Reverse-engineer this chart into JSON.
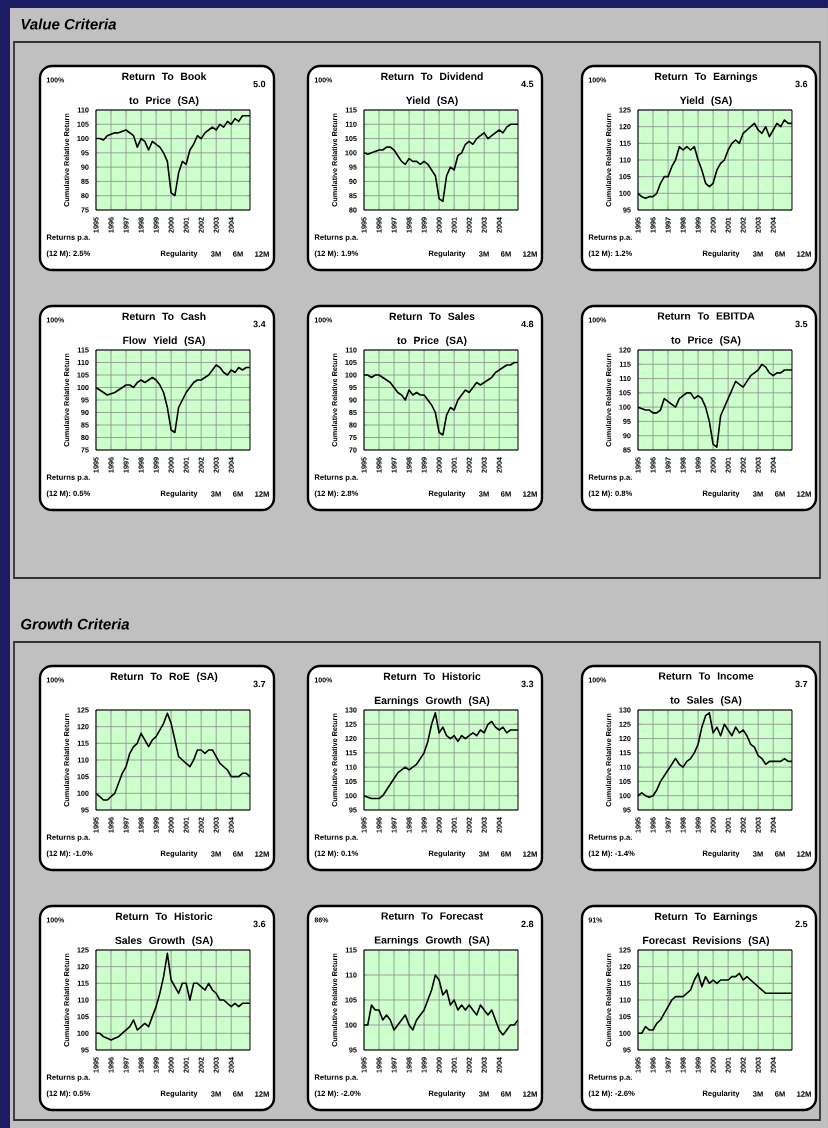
{
  "chart_data": [
    {
      "type": "other",
      "title": "Value Criteria"
    },
    {
      "type": "line",
      "title": "Return To Book to Price (SA)",
      "ylabel": "Cumulative Relative Return",
      "annotations": [
        "100%",
        "5.0",
        "Returns p.a.",
        "(12 M): 2.5%",
        "Regularity",
        "3M",
        "6M",
        "12M"
      ],
      "x": [
        1995,
        1995.25,
        1995.5,
        1995.75,
        1996,
        1996.25,
        1996.5,
        1996.75,
        1997,
        1997.25,
        1997.5,
        1997.75,
        1998,
        1998.25,
        1998.5,
        1998.75,
        1999,
        1999.25,
        1999.5,
        1999.75,
        2000,
        2000.25,
        2000.5,
        2000.75,
        2001,
        2001.25,
        2001.5,
        2001.75,
        2002,
        2002.25,
        2002.5,
        2002.75,
        2003,
        2003.25,
        2003.5,
        2003.75,
        2004,
        2004.25,
        2004.5,
        2004.75,
        2005,
        2005.25
      ],
      "xlim": [
        1995,
        2005.25
      ],
      "xticks": [
        1995,
        1996,
        1997,
        1998,
        1999,
        2000,
        2001,
        2002,
        2003,
        2004
      ],
      "ylim": [
        75,
        110
      ],
      "yticks": [
        75,
        80,
        85,
        90,
        95,
        100,
        105,
        110
      ],
      "grid": true,
      "series": [
        {
          "color": "#000000",
          "values": [
            100,
            100,
            99.5,
            101,
            101.5,
            102,
            102,
            102.5,
            103,
            102,
            101,
            97,
            100,
            99,
            96,
            99,
            98,
            97,
            95,
            92,
            81,
            80,
            88,
            92,
            91,
            96,
            98,
            101,
            100,
            102,
            103,
            104,
            103,
            105,
            104,
            106,
            105,
            107,
            106,
            108,
            108,
            108
          ]
        }
      ]
    },
    {
      "type": "line",
      "title": "Return To Dividend Yield (SA)",
      "ylabel": "Cumulative Relative Return",
      "annotations": [
        "100%",
        "4.5",
        "Returns p.a.",
        "(12 M): 1.9%",
        "Regularity",
        "3M",
        "6M",
        "12M"
      ],
      "x": [
        1995,
        1995.25,
        1995.5,
        1995.75,
        1996,
        1996.25,
        1996.5,
        1996.75,
        1997,
        1997.25,
        1997.5,
        1997.75,
        1998,
        1998.25,
        1998.5,
        1998.75,
        1999,
        1999.25,
        1999.5,
        1999.75,
        2000,
        2000.25,
        2000.5,
        2000.75,
        2001,
        2001.25,
        2001.5,
        2001.75,
        2002,
        2002.25,
        2002.5,
        2002.75,
        2003,
        2003.25,
        2003.5,
        2003.75,
        2004,
        2004.25,
        2004.5,
        2004.75,
        2005,
        2005.25
      ],
      "xlim": [
        1995,
        2005.25
      ],
      "xticks": [
        1995,
        1996,
        1997,
        1998,
        1999,
        2000,
        2001,
        2002,
        2003,
        2004
      ],
      "ylim": [
        80,
        115
      ],
      "yticks": [
        80,
        85,
        90,
        95,
        100,
        105,
        110,
        115
      ],
      "grid": true,
      "series": [
        {
          "color": "#000000",
          "values": [
            100,
            99.5,
            100,
            100.5,
            101,
            101,
            102,
            102,
            101,
            99,
            97,
            96,
            98,
            97,
            97,
            96,
            97,
            96,
            94,
            92,
            84,
            83,
            92,
            95,
            94,
            99,
            100,
            103,
            104,
            103,
            105,
            106,
            107,
            105,
            106,
            107,
            108,
            107,
            109,
            110,
            110,
            110
          ]
        }
      ]
    },
    {
      "type": "line",
      "title": "Return To Earnings Yield (SA)",
      "ylabel": "Cumulative Relative Return",
      "annotations": [
        "100%",
        "3.6",
        "Returns p.a.",
        "(12 M): 1.2%",
        "Regularity",
        "3M",
        "6M",
        "12M"
      ],
      "x": [
        1995,
        1995.25,
        1995.5,
        1995.75,
        1996,
        1996.25,
        1996.5,
        1996.75,
        1997,
        1997.25,
        1997.5,
        1997.75,
        1998,
        1998.25,
        1998.5,
        1998.75,
        1999,
        1999.25,
        1999.5,
        1999.75,
        2000,
        2000.25,
        2000.5,
        2000.75,
        2001,
        2001.25,
        2001.5,
        2001.75,
        2002,
        2002.25,
        2002.5,
        2002.75,
        2003,
        2003.25,
        2003.5,
        2003.75,
        2004,
        2004.25,
        2004.5,
        2004.75,
        2005,
        2005.25
      ],
      "xlim": [
        1995,
        2005.25
      ],
      "xticks": [
        1995,
        1996,
        1997,
        1998,
        1999,
        2000,
        2001,
        2002,
        2003,
        2004
      ],
      "ylim": [
        95,
        125
      ],
      "yticks": [
        95,
        100,
        105,
        110,
        115,
        120,
        125
      ],
      "grid": true,
      "series": [
        {
          "color": "#000000",
          "values": [
            100,
            99,
            98.5,
            99,
            99,
            100,
            103,
            105,
            105,
            108,
            110,
            114,
            113,
            114,
            113,
            114,
            110,
            107,
            103,
            102,
            103,
            107,
            109,
            110,
            113,
            115,
            116,
            115,
            118,
            119,
            120,
            121,
            119,
            118,
            120,
            117,
            119,
            121,
            120,
            122,
            121,
            121
          ]
        }
      ]
    },
    {
      "type": "line",
      "title": "Return To Cash Flow Yield (SA)",
      "ylabel": "Cumulative Relative Return",
      "annotations": [
        "100%",
        "3.4",
        "Returns p.a.",
        "(12 M): 0.5%",
        "Regularity",
        "3M",
        "6M",
        "12M"
      ],
      "x": [
        1995,
        1995.25,
        1995.5,
        1995.75,
        1996,
        1996.25,
        1996.5,
        1996.75,
        1997,
        1997.25,
        1997.5,
        1997.75,
        1998,
        1998.25,
        1998.5,
        1998.75,
        1999,
        1999.25,
        1999.5,
        1999.75,
        2000,
        2000.25,
        2000.5,
        2000.75,
        2001,
        2001.25,
        2001.5,
        2001.75,
        2002,
        2002.25,
        2002.5,
        2002.75,
        2003,
        2003.25,
        2003.5,
        2003.75,
        2004,
        2004.25,
        2004.5,
        2004.75,
        2005,
        2005.25
      ],
      "xlim": [
        1995,
        2005.25
      ],
      "xticks": [
        1995,
        1996,
        1997,
        1998,
        1999,
        2000,
        2001,
        2002,
        2003,
        2004
      ],
      "ylim": [
        75,
        115
      ],
      "yticks": [
        75,
        80,
        85,
        90,
        95,
        100,
        105,
        110,
        115
      ],
      "grid": true,
      "series": [
        {
          "color": "#000000",
          "values": [
            100,
            99,
            98,
            97,
            97.5,
            98,
            99,
            100,
            101,
            101,
            100,
            102,
            103,
            102,
            103,
            104,
            103,
            101,
            98,
            92,
            83,
            82,
            92,
            95,
            98,
            100,
            102,
            103,
            103,
            104,
            105,
            107,
            109,
            108,
            106,
            105,
            107,
            106,
            108,
            107,
            108,
            108
          ]
        }
      ]
    },
    {
      "type": "line",
      "title": "Return To Sales to Price (SA)",
      "ylabel": "Cumulative Relative Return",
      "annotations": [
        "100%",
        "4.8",
        "Returns p.a.",
        "(12 M): 2.8%",
        "Regularity",
        "3M",
        "6M",
        "12M"
      ],
      "x": [
        1995,
        1995.25,
        1995.5,
        1995.75,
        1996,
        1996.25,
        1996.5,
        1996.75,
        1997,
        1997.25,
        1997.5,
        1997.75,
        1998,
        1998.25,
        1998.5,
        1998.75,
        1999,
        1999.25,
        1999.5,
        1999.75,
        2000,
        2000.25,
        2000.5,
        2000.75,
        2001,
        2001.25,
        2001.5,
        2001.75,
        2002,
        2002.25,
        2002.5,
        2002.75,
        2003,
        2003.25,
        2003.5,
        2003.75,
        2004,
        2004.25,
        2004.5,
        2004.75,
        2005,
        2005.25
      ],
      "xlim": [
        1995,
        2005.25
      ],
      "xticks": [
        1995,
        1996,
        1997,
        1998,
        1999,
        2000,
        2001,
        2002,
        2003,
        2004
      ],
      "ylim": [
        70,
        110
      ],
      "yticks": [
        70,
        75,
        80,
        85,
        90,
        95,
        100,
        105,
        110
      ],
      "grid": true,
      "series": [
        {
          "color": "#000000",
          "values": [
            100,
            100,
            99,
            100,
            100,
            99,
            98,
            97,
            95,
            93,
            92,
            90,
            94,
            92,
            93,
            92,
            92,
            90,
            88,
            85,
            77,
            76,
            84,
            87,
            86,
            90,
            92,
            94,
            93,
            95,
            97,
            96,
            97,
            98,
            99,
            101,
            102,
            103,
            104,
            104,
            105,
            105
          ]
        }
      ]
    },
    {
      "type": "line",
      "title": "Return To EBITDA to Price (SA)",
      "ylabel": "Cumulative Relative Return",
      "annotations": [
        "100%",
        "3.5",
        "Returns p.a.",
        "(12 M): 0.8%",
        "Regularity",
        "3M",
        "6M",
        "12M"
      ],
      "x": [
        1995,
        1995.25,
        1995.5,
        1995.75,
        1996,
        1996.25,
        1996.5,
        1996.75,
        1997,
        1997.25,
        1997.5,
        1997.75,
        1998,
        1998.25,
        1998.5,
        1998.75,
        1999,
        1999.25,
        1999.5,
        1999.75,
        2000,
        2000.25,
        2000.5,
        2000.75,
        2001,
        2001.25,
        2001.5,
        2001.75,
        2002,
        2002.25,
        2002.5,
        2002.75,
        2003,
        2003.25,
        2003.5,
        2003.75,
        2004,
        2004.25,
        2004.5,
        2004.75,
        2005,
        2005.25
      ],
      "xlim": [
        1995,
        2005.25
      ],
      "xticks": [
        1995,
        1996,
        1997,
        1998,
        1999,
        2000,
        2001,
        2002,
        2003,
        2004
      ],
      "ylim": [
        85,
        120
      ],
      "yticks": [
        85,
        90,
        95,
        100,
        105,
        110,
        115,
        120
      ],
      "grid": true,
      "series": [
        {
          "color": "#000000",
          "values": [
            100,
            99.5,
            99,
            99,
            98,
            98,
            99,
            103,
            102,
            101,
            100,
            103,
            104,
            105,
            105,
            103,
            104,
            103,
            100,
            95,
            87,
            86,
            97,
            100,
            103,
            106,
            109,
            108,
            107,
            109,
            111,
            112,
            113,
            115,
            114,
            112,
            111,
            112,
            112,
            113,
            113,
            113
          ]
        }
      ]
    },
    {
      "type": "other",
      "title": "Growth Criteria"
    },
    {
      "type": "line",
      "title": "Return To RoE (SA)",
      "ylabel": "Cumulative Relative Return",
      "annotations": [
        "100%",
        "3.7",
        "Returns p.a.",
        "(12 M): -1.0%",
        "Regularity",
        "3M",
        "6M",
        "12M"
      ],
      "x": [
        1995,
        1995.25,
        1995.5,
        1995.75,
        1996,
        1996.25,
        1996.5,
        1996.75,
        1997,
        1997.25,
        1997.5,
        1997.75,
        1998,
        1998.25,
        1998.5,
        1998.75,
        1999,
        1999.25,
        1999.5,
        1999.75,
        2000,
        2000.25,
        2000.5,
        2000.75,
        2001,
        2001.25,
        2001.5,
        2001.75,
        2002,
        2002.25,
        2002.5,
        2002.75,
        2003,
        2003.25,
        2003.5,
        2003.75,
        2004,
        2004.25,
        2004.5,
        2004.75,
        2005,
        2005.25
      ],
      "xlim": [
        1995,
        2005.25
      ],
      "xticks": [
        1995,
        1996,
        1997,
        1998,
        1999,
        2000,
        2001,
        2002,
        2003,
        2004
      ],
      "ylim": [
        95,
        125
      ],
      "yticks": [
        95,
        100,
        105,
        110,
        115,
        120,
        125
      ],
      "grid": true,
      "series": [
        {
          "color": "#000000",
          "values": [
            100,
            99,
            98,
            98,
            99,
            100,
            103,
            106,
            108,
            112,
            114,
            115,
            118,
            116,
            114,
            116,
            117,
            119,
            121,
            124,
            121,
            116,
            111,
            110,
            109,
            108,
            110,
            113,
            113,
            112,
            113,
            113,
            111,
            109,
            108,
            107,
            105,
            105,
            105,
            106,
            106,
            105
          ]
        }
      ]
    },
    {
      "type": "line",
      "title": "Return To Historic Earnings Growth (SA)",
      "ylabel": "Cumulative Relative Return",
      "annotations": [
        "100%",
        "3.3",
        "Returns p.a.",
        "(12 M): 0.1%",
        "Regularity",
        "3M",
        "6M",
        "12M"
      ],
      "x": [
        1995,
        1995.25,
        1995.5,
        1995.75,
        1996,
        1996.25,
        1996.5,
        1996.75,
        1997,
        1997.25,
        1997.5,
        1997.75,
        1998,
        1998.25,
        1998.5,
        1998.75,
        1999,
        1999.25,
        1999.5,
        1999.75,
        2000,
        2000.25,
        2000.5,
        2000.75,
        2001,
        2001.25,
        2001.5,
        2001.75,
        2002,
        2002.25,
        2002.5,
        2002.75,
        2003,
        2003.25,
        2003.5,
        2003.75,
        2004,
        2004.25,
        2004.5,
        2004.75,
        2005,
        2005.25
      ],
      "xlim": [
        1995,
        2005.25
      ],
      "xticks": [
        1995,
        1996,
        1997,
        1998,
        1999,
        2000,
        2001,
        2002,
        2003,
        2004
      ],
      "ylim": [
        95,
        130
      ],
      "yticks": [
        95,
        100,
        105,
        110,
        115,
        120,
        125,
        130
      ],
      "grid": true,
      "series": [
        {
          "color": "#000000",
          "values": [
            100,
            99.5,
            99,
            99,
            99,
            100,
            102,
            104,
            106,
            108,
            109,
            110,
            109,
            110,
            111,
            113,
            115,
            119,
            125,
            129,
            122,
            124,
            121,
            120,
            121,
            119,
            121,
            120,
            121,
            122,
            121,
            123,
            122,
            125,
            126,
            124,
            123,
            124,
            122,
            123,
            123,
            123
          ]
        }
      ]
    },
    {
      "type": "line",
      "title": "Return To Income to Sales (SA)",
      "ylabel": "Cumulative Relative Return",
      "annotations": [
        "100%",
        "3.7",
        "Returns p.a.",
        "(12 M): -1.4%",
        "Regularity",
        "3M",
        "6M",
        "12M"
      ],
      "x": [
        1995,
        1995.25,
        1995.5,
        1995.75,
        1996,
        1996.25,
        1996.5,
        1996.75,
        1997,
        1997.25,
        1997.5,
        1997.75,
        1998,
        1998.25,
        1998.5,
        1998.75,
        1999,
        1999.25,
        1999.5,
        1999.75,
        2000,
        2000.25,
        2000.5,
        2000.75,
        2001,
        2001.25,
        2001.5,
        2001.75,
        2002,
        2002.25,
        2002.5,
        2002.75,
        2003,
        2003.25,
        2003.5,
        2003.75,
        2004,
        2004.25,
        2004.5,
        2004.75,
        2005,
        2005.25
      ],
      "xlim": [
        1995,
        2005.25
      ],
      "xticks": [
        1995,
        1996,
        1997,
        1998,
        1999,
        2000,
        2001,
        2002,
        2003,
        2004
      ],
      "ylim": [
        95,
        130
      ],
      "yticks": [
        95,
        100,
        105,
        110,
        115,
        120,
        125,
        130
      ],
      "grid": true,
      "series": [
        {
          "color": "#000000",
          "values": [
            100,
            101,
            100,
            99.5,
            100,
            102,
            105,
            107,
            109,
            111,
            113,
            111,
            110,
            112,
            113,
            115,
            118,
            124,
            128,
            129,
            122,
            124,
            121,
            125,
            123,
            121,
            124,
            122,
            123,
            121,
            118,
            117,
            114,
            113,
            111,
            112,
            112,
            112,
            112,
            113,
            112,
            112
          ]
        }
      ]
    },
    {
      "type": "line",
      "title": "Return To Historic Sales Growth (SA)",
      "ylabel": "Cumulative Relative Return",
      "annotations": [
        "100%",
        "3.6",
        "Returns p.a.",
        "(12 M): 0.5%",
        "Regularity",
        "3M",
        "6M",
        "12M"
      ],
      "x": [
        1995,
        1995.25,
        1995.5,
        1995.75,
        1996,
        1996.25,
        1996.5,
        1996.75,
        1997,
        1997.25,
        1997.5,
        1997.75,
        1998,
        1998.25,
        1998.5,
        1998.75,
        1999,
        1999.25,
        1999.5,
        1999.75,
        2000,
        2000.25,
        2000.5,
        2000.75,
        2001,
        2001.25,
        2001.5,
        2001.75,
        2002,
        2002.25,
        2002.5,
        2002.75,
        2003,
        2003.25,
        2003.5,
        2003.75,
        2004,
        2004.25,
        2004.5,
        2004.75,
        2005,
        2005.25
      ],
      "xlim": [
        1995,
        2005.25
      ],
      "xticks": [
        1995,
        1996,
        1997,
        1998,
        1999,
        2000,
        2001,
        2002,
        2003,
        2004
      ],
      "ylim": [
        95,
        125
      ],
      "yticks": [
        95,
        100,
        105,
        110,
        115,
        120,
        125
      ],
      "grid": true,
      "series": [
        {
          "color": "#000000",
          "values": [
            100,
            100,
            99,
            98.5,
            98,
            98.5,
            99,
            100,
            101,
            102,
            104,
            101,
            102,
            103,
            102,
            105,
            108,
            112,
            117,
            124,
            116,
            114,
            112,
            115,
            115,
            110,
            115,
            115,
            114,
            113,
            115,
            113,
            112,
            110,
            110,
            109,
            108,
            109,
            108,
            109,
            109,
            109
          ]
        }
      ]
    },
    {
      "type": "line",
      "title": "Return To Forecast Earnings Growth (SA)",
      "ylabel": "Cumulative Relative Return",
      "annotations": [
        "86%",
        "2.8",
        "Returns p.a.",
        "(12 M): -2.0%",
        "Regularity",
        "3M",
        "6M",
        "12M"
      ],
      "x": [
        1995,
        1995.25,
        1995.5,
        1995.75,
        1996,
        1996.25,
        1996.5,
        1996.75,
        1997,
        1997.25,
        1997.5,
        1997.75,
        1998,
        1998.25,
        1998.5,
        1998.75,
        1999,
        1999.25,
        1999.5,
        1999.75,
        2000,
        2000.25,
        2000.5,
        2000.75,
        2001,
        2001.25,
        2001.5,
        2001.75,
        2002,
        2002.25,
        2002.5,
        2002.75,
        2003,
        2003.25,
        2003.5,
        2003.75,
        2004,
        2004.25,
        2004.5,
        2004.75,
        2005,
        2005.25
      ],
      "xlim": [
        1995,
        2005.25
      ],
      "xticks": [
        1995,
        1996,
        1997,
        1998,
        1999,
        2000,
        2001,
        2002,
        2003,
        2004
      ],
      "ylim": [
        95,
        115
      ],
      "yticks": [
        95,
        100,
        105,
        110,
        115
      ],
      "grid": true,
      "series": [
        {
          "color": "#000000",
          "values": [
            100,
            100,
            104,
            103,
            103,
            101,
            102,
            101,
            99,
            100,
            101,
            102,
            100,
            99,
            101,
            102,
            103,
            105,
            107,
            110,
            109,
            106,
            107,
            104,
            105,
            103,
            104,
            103,
            104,
            103,
            102,
            104,
            103,
            102,
            103,
            101,
            99,
            98,
            99,
            100,
            100,
            101
          ]
        }
      ]
    },
    {
      "type": "line",
      "title": "Return To Earnings Forecast Revisions (SA)",
      "ylabel": "Cumulative Relative Return",
      "annotations": [
        "91%",
        "2.5",
        "Returns p.a.",
        "(12 M): -2.6%",
        "Regularity",
        "3M",
        "6M",
        "12M"
      ],
      "x": [
        1995,
        1995.25,
        1995.5,
        1995.75,
        1996,
        1996.25,
        1996.5,
        1996.75,
        1997,
        1997.25,
        1997.5,
        1997.75,
        1998,
        1998.25,
        1998.5,
        1998.75,
        1999,
        1999.25,
        1999.5,
        1999.75,
        2000,
        2000.25,
        2000.5,
        2000.75,
        2001,
        2001.25,
        2001.5,
        2001.75,
        2002,
        2002.25,
        2002.5,
        2002.75,
        2003,
        2003.25,
        2003.5,
        2003.75,
        2004,
        2004.25,
        2004.5,
        2004.75,
        2005,
        2005.25
      ],
      "xlim": [
        1995,
        2005.25
      ],
      "xticks": [
        1995,
        1996,
        1997,
        1998,
        1999,
        2000,
        2001,
        2002,
        2003,
        2004
      ],
      "ylim": [
        95,
        125
      ],
      "yticks": [
        95,
        100,
        105,
        110,
        115,
        120,
        125
      ],
      "grid": true,
      "series": [
        {
          "color": "#000000",
          "values": [
            100,
            100,
            102,
            101,
            101,
            103,
            104,
            106,
            108,
            110,
            111,
            111,
            111,
            112,
            113,
            116,
            118,
            114,
            117,
            115,
            116,
            115,
            116,
            116,
            116,
            117,
            117,
            118,
            116,
            117,
            116,
            115,
            114,
            113,
            112,
            112,
            112,
            112,
            112,
            112,
            112,
            112
          ]
        }
      ]
    }
  ]
}
